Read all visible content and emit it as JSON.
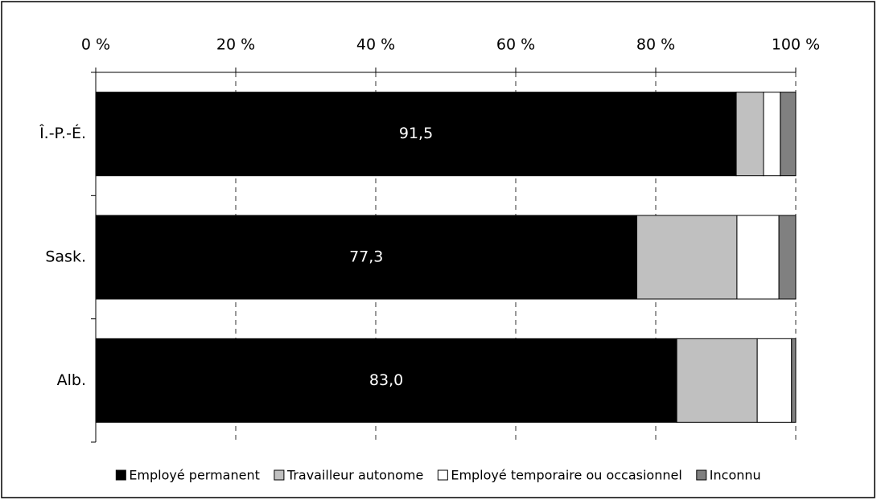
{
  "chart_data": {
    "type": "stacked_bar_horizontal",
    "categories": [
      "Î.-P.-É.",
      "Sask.",
      "Alb."
    ],
    "series": [
      {
        "name": "Employé permanent",
        "color": "#000000",
        "values": [
          91.5,
          77.3,
          83.0
        ],
        "value_labels": [
          "91,5",
          "77,3",
          "83,0"
        ]
      },
      {
        "name": "Travailleur autonome",
        "color": "#c0c0c0",
        "values": [
          3.9,
          14.3,
          11.5
        ]
      },
      {
        "name": "Employé temporaire ou occasionnel",
        "color": "#ffffff",
        "values": [
          2.4,
          6.0,
          4.9
        ]
      },
      {
        "name": "Inconnu",
        "color": "#808080",
        "values": [
          2.2,
          2.4,
          0.6
        ]
      }
    ],
    "xlim": [
      0,
      100
    ],
    "xticks": [
      {
        "value": 0,
        "label": "0 %"
      },
      {
        "value": 20,
        "label": "20 %"
      },
      {
        "value": 40,
        "label": "40 %"
      },
      {
        "value": 60,
        "label": "60 %"
      },
      {
        "value": 80,
        "label": "80 %"
      },
      {
        "value": 100,
        "label": "100 %"
      }
    ],
    "grid": true,
    "legend": "bottom"
  }
}
